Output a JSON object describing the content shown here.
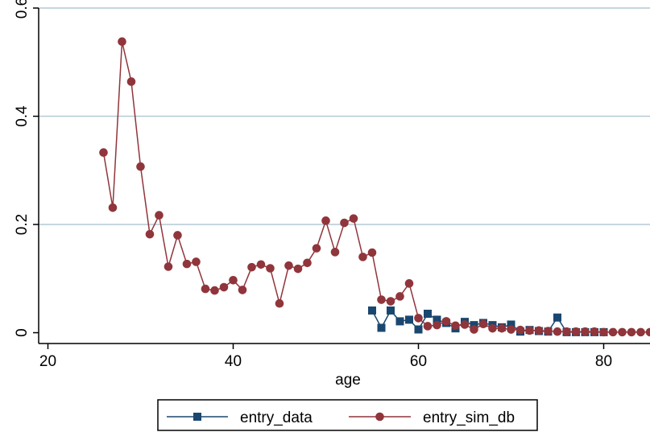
{
  "chart_data": {
    "type": "line",
    "xlabel": "age",
    "ylabel": "",
    "xlim": [
      19,
      85
    ],
    "ylim": [
      -0.02,
      0.6
    ],
    "xticks": [
      20,
      40,
      60,
      80
    ],
    "yticks": [
      0,
      0.2,
      0.4,
      0.6
    ],
    "xtick_labels": [
      "20",
      "40",
      "60",
      "80"
    ],
    "ytick_labels": [
      "0",
      "0.2",
      "0.4",
      "0.6"
    ],
    "grid": true,
    "legend_position": "bottom",
    "series": [
      {
        "name": "entry_data",
        "color": "#1a476f",
        "marker": "square",
        "x": [
          55,
          56,
          57,
          58,
          59,
          60,
          61,
          62,
          63,
          64,
          65,
          66,
          67,
          68,
          69,
          70,
          71,
          72,
          73,
          74,
          75,
          76,
          77,
          78,
          79,
          80
        ],
        "y": [
          0.041,
          0.009,
          0.041,
          0.021,
          0.024,
          0.006,
          0.035,
          0.024,
          0.018,
          0.008,
          0.02,
          0.014,
          0.018,
          0.014,
          0.01,
          0.015,
          0.002,
          0.005,
          0.003,
          0.002,
          0.028,
          0.001,
          0.001,
          0.001,
          0.001,
          0.001
        ]
      },
      {
        "name": "entry_sim_db",
        "color": "#90353b",
        "marker": "circle",
        "x": [
          26,
          27,
          28,
          29,
          30,
          31,
          32,
          33,
          34,
          35,
          36,
          37,
          38,
          39,
          40,
          41,
          42,
          43,
          44,
          45,
          46,
          47,
          48,
          49,
          50,
          51,
          52,
          53,
          54,
          55,
          56,
          57,
          58,
          59,
          60,
          61,
          62,
          63,
          64,
          65,
          66,
          67,
          68,
          69,
          70,
          71,
          72,
          73,
          74,
          75,
          76,
          77,
          78,
          79,
          80,
          81,
          82,
          83,
          84,
          85
        ],
        "y": [
          0.333,
          0.231,
          0.538,
          0.464,
          0.307,
          0.182,
          0.217,
          0.122,
          0.18,
          0.127,
          0.131,
          0.081,
          0.078,
          0.084,
          0.097,
          0.079,
          0.121,
          0.126,
          0.119,
          0.054,
          0.124,
          0.118,
          0.129,
          0.156,
          0.207,
          0.149,
          0.203,
          0.211,
          0.14,
          0.148,
          0.061,
          0.058,
          0.067,
          0.091,
          0.027,
          0.012,
          0.014,
          0.021,
          0.013,
          0.015,
          0.006,
          0.016,
          0.008,
          0.008,
          0.006,
          0.005,
          0.004,
          0.004,
          0.003,
          0.002,
          0.002,
          0.002,
          0.002,
          0.002,
          0.001,
          0.001,
          0.001,
          0.001,
          0.001,
          0.001
        ]
      }
    ]
  }
}
